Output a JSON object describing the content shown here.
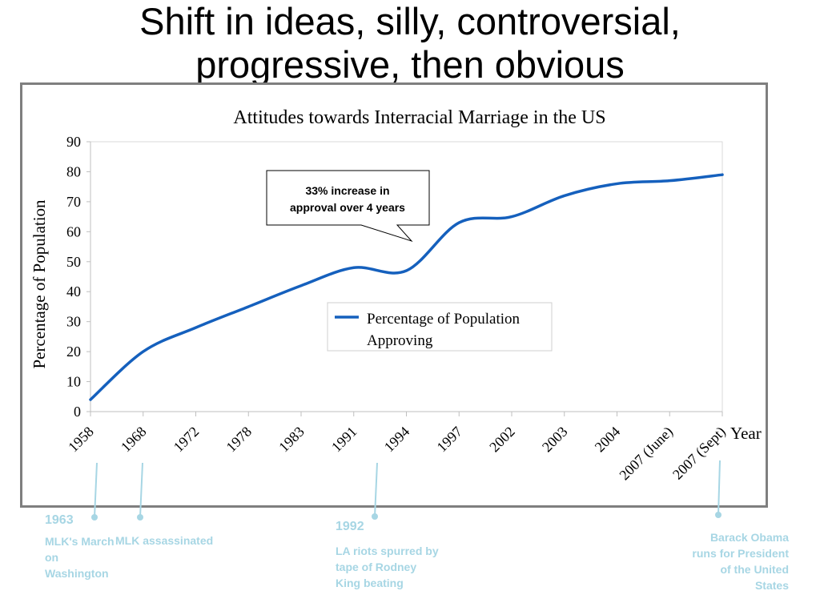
{
  "slide": {
    "title_line1": "Shift in ideas, silly, controversial,",
    "title_line2": "progressive, then obvious"
  },
  "chart_data": {
    "type": "line",
    "title": "Attitudes towards Interracial Marriage in the US",
    "xlabel": "Year",
    "ylabel": "Percentage of Population",
    "categories": [
      "1958",
      "1968",
      "1972",
      "1978",
      "1983",
      "1991",
      "1994",
      "1997",
      "2002",
      "2003",
      "2004",
      "2007 (June)",
      "2007 (Sept)"
    ],
    "series": [
      {
        "name": "Percentage of Population Approving",
        "values": [
          4,
          20,
          28,
          35,
          42,
          48,
          47,
          63,
          65,
          72,
          76,
          77,
          79
        ],
        "color": "#1560bd"
      }
    ],
    "ylim": [
      0,
      90
    ],
    "yticks": [
      0,
      10,
      20,
      30,
      40,
      50,
      60,
      70,
      80,
      90
    ],
    "grid": false,
    "legend": "center-right",
    "callout": {
      "line1": "33% increase in",
      "line2": "approval over 4 years"
    }
  },
  "annotations": [
    {
      "year": "1963",
      "text_lines": [
        "MLK's March",
        "on",
        "Washington"
      ]
    },
    {
      "year": "",
      "text_lines": [
        "MLK assassinated"
      ]
    },
    {
      "year": "1992",
      "text_lines": [
        "LA riots spurred by",
        "tape of Rodney",
        "King beating"
      ]
    },
    {
      "year": "",
      "text_lines": [
        "Barack Obama",
        "runs for President",
        "of the United",
        "States"
      ]
    }
  ],
  "colors": {
    "line": "#1560bd",
    "annotation": "#a7d6e4",
    "frame": "#7f7f7f"
  }
}
